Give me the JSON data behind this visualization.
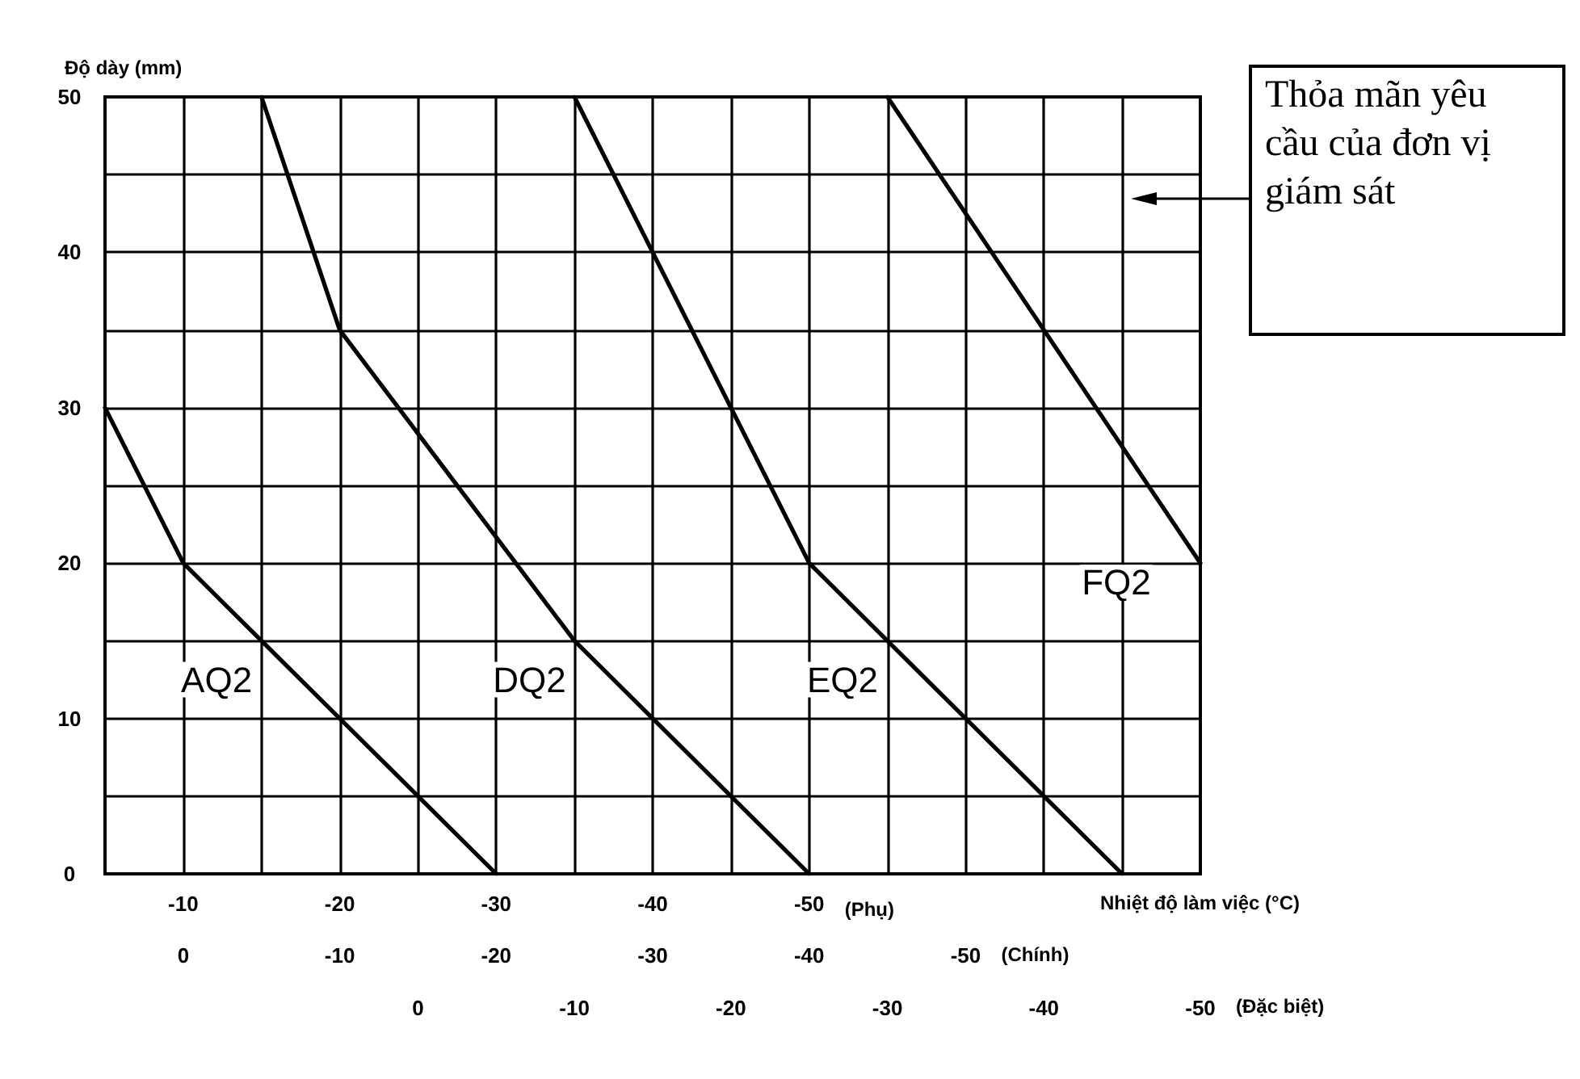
{
  "chart_data": {
    "type": "line",
    "ylabel": "Độ dày (mm)",
    "xlabel": "Nhiệt độ làm việc (°C)",
    "x2label": "(Chính)",
    "xlim": [
      -5,
      -75
    ],
    "xticks": [
      {
        "value": -5,
        "label": null
      },
      -10,
      {
        "value": -15,
        "label": null
      },
      -20,
      {
        "value": -25,
        "label": null
      },
      -30,
      {
        "value": -35,
        "label": null
      },
      -40,
      {
        "value": -45,
        "label": null
      },
      -50,
      {
        "value": -55,
        "label": null
      },
      {
        "value": -60,
        "label": null
      },
      {
        "value": -65,
        "label": null
      },
      {
        "value": -70,
        "label": null
      },
      {
        "value": -75,
        "label": null
      }
    ],
    "x2lim": [
      0,
      -50
    ],
    "x2ticks": [
      0,
      -10,
      -20,
      -30,
      -40,
      -50
    ],
    "ylim": [
      0,
      50
    ],
    "yticks": [
      0,
      {
        "value": 5,
        "label": null
      },
      10,
      {
        "value": 15,
        "label": null
      },
      20,
      {
        "value": 25,
        "label": null
      },
      30,
      {
        "value": 35,
        "label": null
      },
      40,
      {
        "value": 45,
        "label": null
      },
      50
    ],
    "grid": true,
    "legend": false,
    "marker": "none",
    "line_style": "solid",
    "series": [
      {
        "name": "AQ2",
        "color": "#000000",
        "x": [
          -5,
          -10,
          -30
        ],
        "values": [
          30,
          20,
          0
        ]
      },
      {
        "name": "DQ2",
        "color": "#000000",
        "x": [
          -15,
          -20,
          -35,
          -50
        ],
        "values": [
          50,
          35,
          15,
          0
        ]
      },
      {
        "name": "EQ2",
        "color": "#000000",
        "x": [
          -35,
          -50,
          -70
        ],
        "values": [
          50,
          20,
          0
        ]
      },
      {
        "name": "FQ2",
        "color": "#000000",
        "x": [
          -55,
          -75
        ],
        "values": [
          50,
          20
        ]
      }
    ],
    "annotations": [
      "(Phụ)",
      "0",
      "-10",
      "-20",
      "-30",
      "-40",
      "-50",
      "(Đặc biệt)",
      "Thỏa mãn yêu cầu của đơn vị giám sát"
    ]
  }
}
